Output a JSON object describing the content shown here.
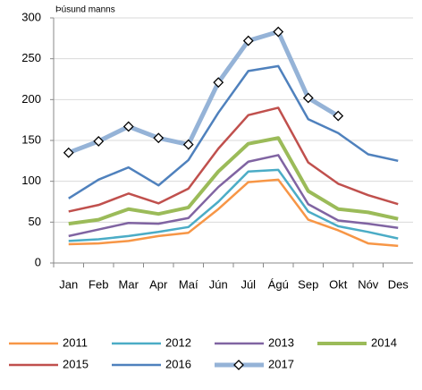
{
  "chart_data": {
    "type": "line",
    "y_label": "Þúsund manns",
    "categories": [
      "Jan",
      "Feb",
      "Mar",
      "Apr",
      "Maí",
      "Jún",
      "Júl",
      "Ágú",
      "Sep",
      "Okt",
      "Nóv",
      "Des"
    ],
    "series": [
      {
        "name": "2011",
        "color": "#f79646",
        "values": [
          23,
          24,
          27,
          33,
          37,
          66,
          99,
          102,
          53,
          40,
          24,
          21
        ]
      },
      {
        "name": "2012",
        "color": "#4bacc6",
        "values": [
          27,
          29,
          33,
          38,
          44,
          75,
          112,
          114,
          63,
          45,
          38,
          30
        ]
      },
      {
        "name": "2013",
        "color": "#8064a2",
        "values": [
          33,
          41,
          49,
          48,
          55,
          93,
          124,
          132,
          72,
          52,
          48,
          43
        ]
      },
      {
        "name": "2014",
        "color": "#9bbb59",
        "values": [
          48,
          53,
          66,
          60,
          68,
          112,
          146,
          153,
          88,
          66,
          62,
          54
        ]
      },
      {
        "name": "2015",
        "color": "#c0504d",
        "values": [
          63,
          71,
          85,
          73,
          91,
          140,
          181,
          190,
          123,
          97,
          83,
          72
        ]
      },
      {
        "name": "2016",
        "color": "#4f81bd",
        "values": [
          79,
          102,
          117,
          95,
          126,
          184,
          235,
          241,
          176,
          159,
          133,
          125
        ]
      },
      {
        "name": "2017",
        "color": "#95b3d7",
        "values": [
          135,
          149,
          167,
          153,
          145,
          221,
          272,
          283,
          202,
          180,
          null,
          null
        ]
      }
    ],
    "ylim": [
      0,
      300
    ],
    "yticks": [
      0,
      50,
      100,
      150,
      200,
      250,
      300
    ],
    "grid": true
  }
}
